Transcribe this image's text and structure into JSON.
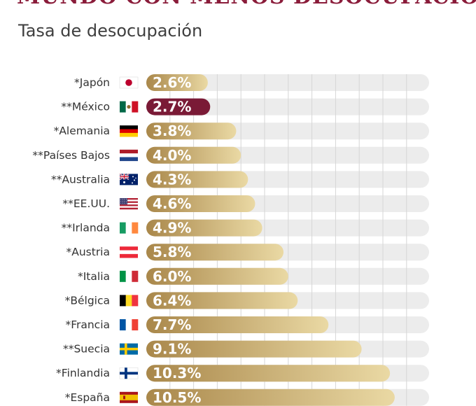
{
  "header": {
    "title": "MUNDO CON MENOS DESOCUPACIÓN",
    "subtitle": "Tasa de desocupación"
  },
  "colors": {
    "title": "#8a1c3a",
    "highlight_bar": "#7a1a36",
    "bar_dark": "#a9874a",
    "bar_light": "#ead9a4",
    "track": "#ececec",
    "grid": "#d6d6d6"
  },
  "chart_data": {
    "type": "bar",
    "orientation": "horizontal",
    "title": "Tasa de desocupación",
    "unit": "%",
    "xlim": [
      0,
      12
    ],
    "grid": true,
    "highlight": "México",
    "categories": [
      "Japón",
      "México",
      "Alemania",
      "Países Bajos",
      "Australia",
      "EE.UU.",
      "Irlanda",
      "Austria",
      "Italia",
      "Bélgica",
      "Francia",
      "Suecia",
      "Finlandia",
      "España"
    ],
    "labels": [
      "*Japón",
      "**México",
      "*Alemania",
      "**Países Bajos",
      "**Australia",
      "**EE.UU.",
      "**Irlanda",
      "*Austria",
      "*Italia",
      "*Bélgica",
      "*Francia",
      "**Suecia",
      "*Finlandia",
      "*España"
    ],
    "flags": [
      "japan-flag-icon",
      "mexico-flag-icon",
      "germany-flag-icon",
      "netherlands-flag-icon",
      "australia-flag-icon",
      "usa-flag-icon",
      "ireland-flag-icon",
      "austria-flag-icon",
      "italy-flag-icon",
      "belgium-flag-icon",
      "france-flag-icon",
      "sweden-flag-icon",
      "finland-flag-icon",
      "spain-flag-icon"
    ],
    "values": [
      2.6,
      2.7,
      3.8,
      4.0,
      4.3,
      4.6,
      4.9,
      5.8,
      6.0,
      6.4,
      7.7,
      9.1,
      10.3,
      10.5
    ],
    "value_labels": [
      "2.6%",
      "2.7%",
      "3.8%",
      "4.0%",
      "4.3%",
      "4.6%",
      "4.9%",
      "5.8%",
      "6.0%",
      "6.4%",
      "7.7%",
      "9.1%",
      "10.3%",
      "10.5%"
    ]
  }
}
